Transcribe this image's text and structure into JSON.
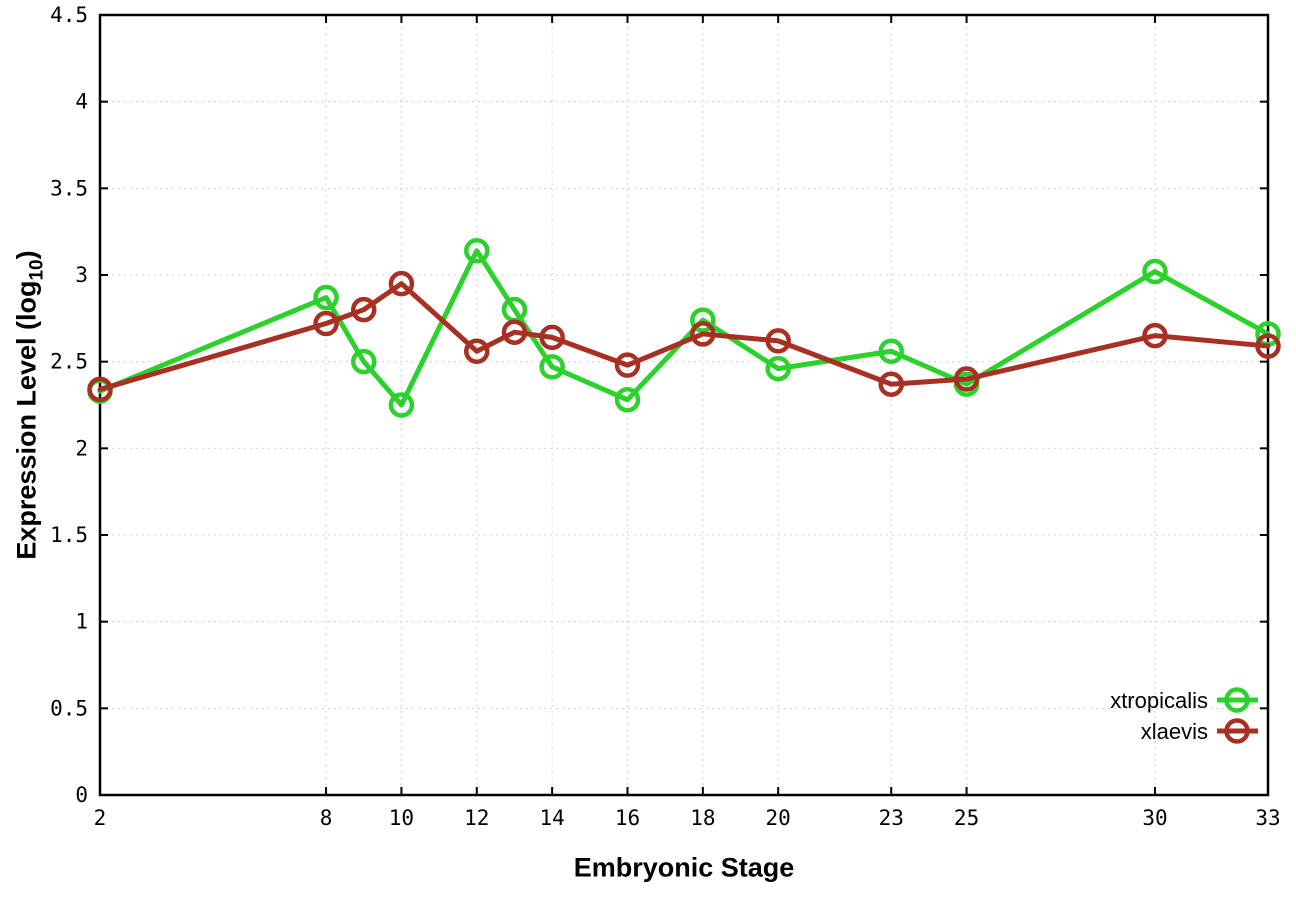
{
  "chart_data": {
    "type": "line",
    "title": "",
    "xlabel": "Embryonic Stage",
    "ylabel_prefix": "Expression Level (log",
    "ylabel_subscript": "10",
    "ylabel_suffix": ")",
    "xlim": [
      2,
      33
    ],
    "ylim": [
      0,
      4.5
    ],
    "grid": true,
    "legend_position": "bottom-right",
    "x": [
      2,
      8,
      9,
      10,
      12,
      13,
      14,
      16,
      18,
      20,
      23,
      25,
      30,
      33
    ],
    "xticks": {
      "values": [
        2,
        8,
        10,
        12,
        14,
        16,
        18,
        20,
        23,
        25,
        30,
        33
      ],
      "labels": [
        "2",
        "8",
        "10",
        "12",
        "14",
        "16",
        "18",
        "20",
        "23",
        "25",
        "30",
        "33"
      ]
    },
    "yticks": {
      "values": [
        0,
        0.5,
        1,
        1.5,
        2,
        2.5,
        3,
        3.5,
        4,
        4.5
      ],
      "labels": [
        "0",
        "0.5",
        "1",
        "1.5",
        "2",
        "2.5",
        "3",
        "3.5",
        "4",
        "4.5"
      ]
    },
    "series": [
      {
        "name": "xtropicalis",
        "color": "#2bd22b",
        "values": [
          2.33,
          2.87,
          2.5,
          2.25,
          3.14,
          2.8,
          2.47,
          2.28,
          2.74,
          2.46,
          2.56,
          2.37,
          3.02,
          2.66
        ]
      },
      {
        "name": "xlaevis",
        "color": "#a83023",
        "values": [
          2.34,
          2.72,
          2.8,
          2.95,
          2.56,
          2.67,
          2.64,
          2.48,
          2.66,
          2.62,
          2.37,
          2.4,
          2.65,
          2.59
        ]
      }
    ]
  },
  "colors": {
    "background": "#ffffff",
    "grid": "#d0d0d0",
    "border": "#000000",
    "text": "#000000"
  }
}
